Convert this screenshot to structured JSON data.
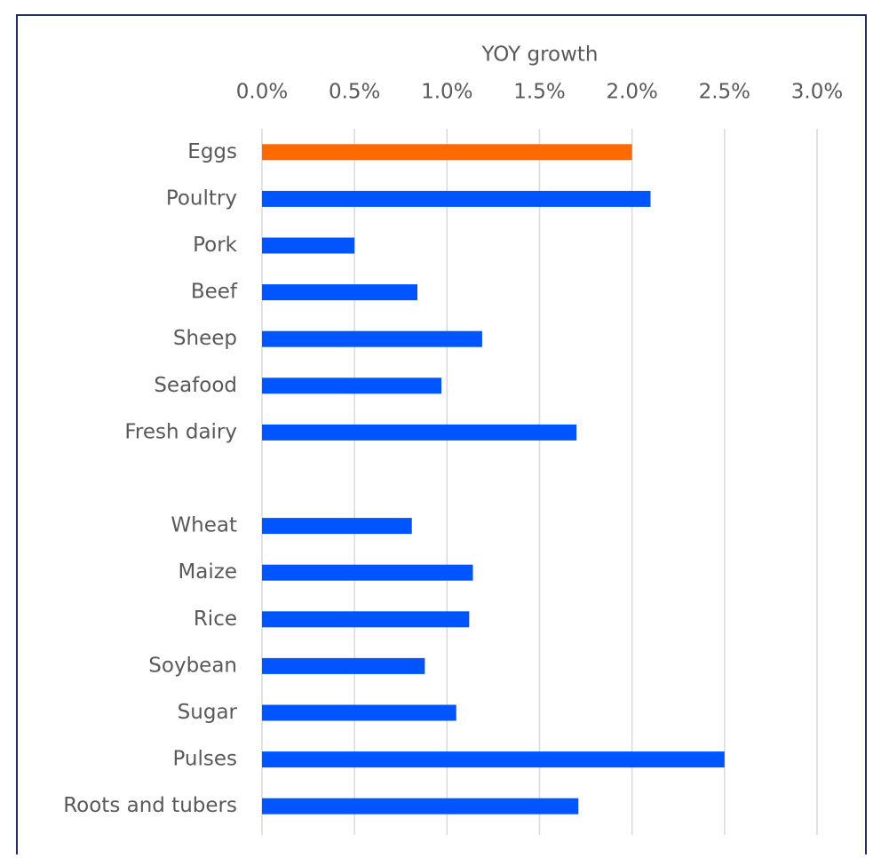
{
  "chart_data": {
    "type": "bar",
    "orientation": "horizontal",
    "x_label": "YOY growth",
    "categories": [
      "Eggs",
      "Poultry",
      "Pork",
      "Beef",
      "Sheep",
      "Seafood",
      "Fresh dairy",
      null,
      "Wheat",
      "Maize",
      "Rice",
      "Soybean",
      "Sugar",
      "Pulses",
      "Roots and tubers"
    ],
    "values": [
      2.0,
      2.1,
      0.5,
      0.84,
      1.19,
      0.97,
      1.7,
      null,
      0.81,
      1.14,
      1.12,
      0.88,
      1.05,
      2.5,
      1.71
    ],
    "colors": [
      "#ff6a00",
      "#0055ff",
      "#0055ff",
      "#0055ff",
      "#0055ff",
      "#0055ff",
      "#0055ff",
      "#0055ff",
      "#0055ff",
      "#0055ff",
      "#0055ff",
      "#0055ff",
      "#0055ff",
      "#0055ff",
      "#0055ff"
    ],
    "xlim": [
      0,
      3
    ],
    "xaxis_position": "top",
    "xticks": [
      {
        "value": 0,
        "label": "0.0%"
      },
      {
        "value": 0.5,
        "label": "0.5%"
      },
      {
        "value": 1,
        "label": "1.0%"
      },
      {
        "value": 1.5,
        "label": "1.5%"
      },
      {
        "value": 2,
        "label": "2.0%"
      },
      {
        "value": 2.5,
        "label": "2.5%"
      },
      {
        "value": 3,
        "label": "3.0%"
      }
    ],
    "grid": true
  }
}
